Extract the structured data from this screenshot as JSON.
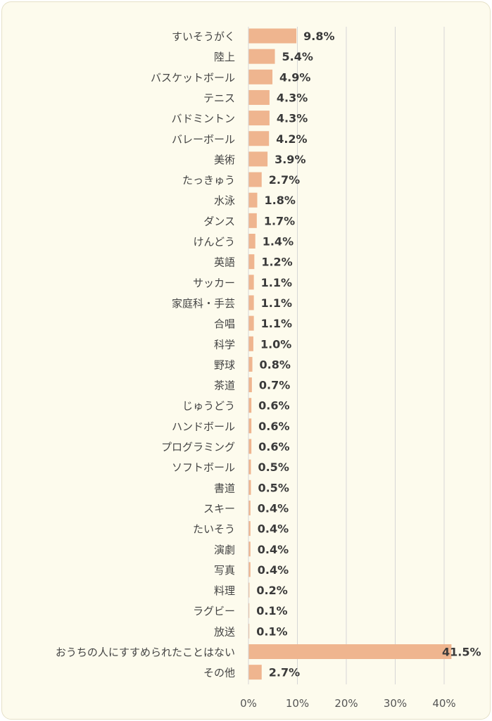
{
  "colors": {
    "bar": "#efb58f",
    "grid": "#d6d6d6",
    "background": "#fdfbed"
  },
  "chart_data": {
    "type": "bar",
    "orientation": "horizontal",
    "title": "",
    "xlabel": "",
    "ylabel": "",
    "xlim": [
      0,
      45
    ],
    "grid": true,
    "x_ticks": [
      0,
      10,
      20,
      30,
      40
    ],
    "x_tick_labels": [
      "0%",
      "10%",
      "20%",
      "30%",
      "40%"
    ],
    "categories": [
      "すいそうがく",
      "陸上",
      "バスケットボール",
      "テニス",
      "バドミントン",
      "バレーボール",
      "美術",
      "たっきゅう",
      "水泳",
      "ダンス",
      "けんどう",
      "英語",
      "サッカー",
      "家庭科・手芸",
      "合唱",
      "科学",
      "野球",
      "茶道",
      "じゅうどう",
      "ハンドボール",
      "プログラミング",
      "ソフトボール",
      "書道",
      "スキー",
      "たいそう",
      "演劇",
      "写真",
      "料理",
      "ラグビー",
      "放送",
      "おうちの人にすすめられたことはない",
      "その他"
    ],
    "values": [
      9.8,
      5.4,
      4.9,
      4.3,
      4.3,
      4.2,
      3.9,
      2.7,
      1.8,
      1.7,
      1.4,
      1.2,
      1.1,
      1.1,
      1.1,
      1.0,
      0.8,
      0.7,
      0.6,
      0.6,
      0.6,
      0.5,
      0.5,
      0.4,
      0.4,
      0.4,
      0.4,
      0.2,
      0.1,
      0.1,
      41.5,
      2.7
    ],
    "value_labels": [
      "9.8%",
      "5.4%",
      "4.9%",
      "4.3%",
      "4.3%",
      "4.2%",
      "3.9%",
      "2.7%",
      "1.8%",
      "1.7%",
      "1.4%",
      "1.2%",
      "1.1%",
      "1.1%",
      "1.1%",
      "1.0%",
      "0.8%",
      "0.7%",
      "0.6%",
      "0.6%",
      "0.6%",
      "0.5%",
      "0.5%",
      "0.4%",
      "0.4%",
      "0.4%",
      "0.4%",
      "0.2%",
      "0.1%",
      "0.1%",
      "41.5%",
      "2.7%"
    ]
  }
}
